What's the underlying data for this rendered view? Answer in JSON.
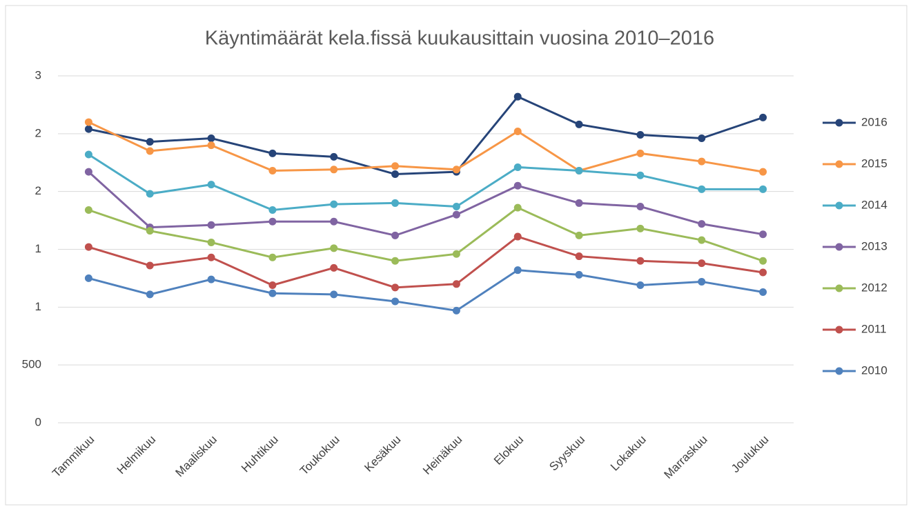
{
  "chart_data": {
    "type": "line",
    "title": "Käyntimäärät kela.fissä kuukausittain vuosina 2010–2016",
    "categories": [
      "Tammikuu",
      "Helmikuu",
      "Maaliskuu",
      "Huhtikuu",
      "Toukokuu",
      "Kesäkuu",
      "Heinäkuu",
      "Elokuu",
      "Syyskuu",
      "Lokakuu",
      "Marraskuu",
      "Joulukuu"
    ],
    "series": [
      {
        "name": "2016",
        "color": "#264478",
        "values": [
          2540,
          2430,
          2460,
          2330,
          2300,
          2150,
          2170,
          2820,
          2580,
          2490,
          2460,
          2640
        ]
      },
      {
        "name": "2015",
        "color": "#f79646",
        "values": [
          2600,
          2350,
          2400,
          2180,
          2190,
          2220,
          2190,
          2520,
          2180,
          2330,
          2260,
          2170
        ]
      },
      {
        "name": "2014",
        "color": "#4bacc6",
        "values": [
          2320,
          1980,
          2060,
          1840,
          1890,
          1900,
          1870,
          2210,
          2180,
          2140,
          2020,
          2020
        ]
      },
      {
        "name": "2013",
        "color": "#8064a2",
        "values": [
          2170,
          1690,
          1710,
          1740,
          1740,
          1620,
          1800,
          2050,
          1900,
          1870,
          1720,
          1630
        ]
      },
      {
        "name": "2012",
        "color": "#9bbb59",
        "values": [
          1840,
          1660,
          1560,
          1430,
          1510,
          1400,
          1460,
          1860,
          1620,
          1680,
          1580,
          1400
        ]
      },
      {
        "name": "2011",
        "color": "#c0504d",
        "values": [
          1520,
          1360,
          1430,
          1190,
          1340,
          1170,
          1200,
          1610,
          1440,
          1400,
          1380,
          1300
        ]
      },
      {
        "name": "2010",
        "color": "#4f81bd",
        "values": [
          1250,
          1110,
          1240,
          1120,
          1110,
          1050,
          970,
          1320,
          1280,
          1190,
          1220,
          1130
        ]
      }
    ],
    "ylim": [
      0,
      3000
    ],
    "yticks": [
      0,
      500,
      {
        "value": 1000,
        "label": "1"
      },
      {
        "value": 1500,
        "label": "1"
      },
      {
        "value": 2000,
        "label": "2"
      },
      {
        "value": 2500,
        "label": "2"
      },
      {
        "value": 3000,
        "label": "3"
      }
    ],
    "grid": true,
    "legend": "right"
  }
}
